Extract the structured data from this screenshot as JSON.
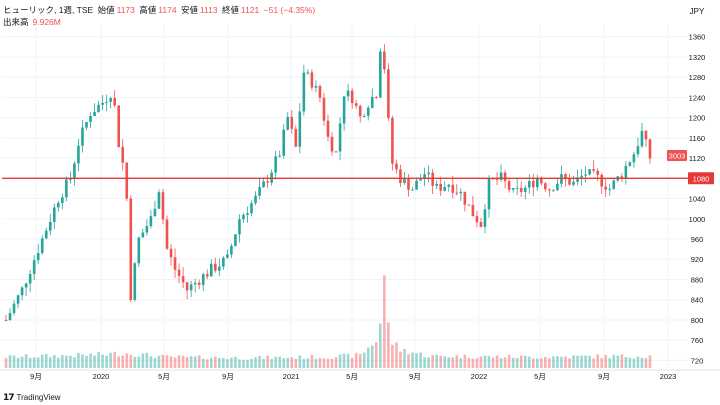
{
  "header": {
    "symbol": "ヒューリック, 1週, TSE",
    "open_label": "始値",
    "open": "1173",
    "high_label": "高値",
    "high": "1174",
    "low_label": "安値",
    "low": "1113",
    "close_label": "終値",
    "close": "1121",
    "change": "−51 (−4.35%)"
  },
  "volume": {
    "label": "出来高",
    "value": "9.926M"
  },
  "brand": "TradingView",
  "colors": {
    "up": "#26a69a",
    "down": "#ef5350",
    "level": "#e53935",
    "grid": "#f0f3fa"
  },
  "chart_data": {
    "type": "candlestick",
    "currency": "JPY",
    "x_ticks": [
      "9月",
      "2020",
      "5月",
      "9月",
      "2021",
      "5月",
      "9月",
      "2022",
      "5月",
      "9月",
      "2023"
    ],
    "y_ticks": [
      720,
      760,
      800,
      840,
      880,
      920,
      960,
      1000,
      1040,
      1080,
      1120,
      1160,
      1200,
      1240,
      1280,
      1320,
      1360
    ],
    "ylim": [
      705,
      1385
    ],
    "horizontal_line": 1080,
    "horizontal_line_label": "1080",
    "last_price_label": "3003",
    "last_close": 1121,
    "price_waypoints": [
      [
        0,
        800
      ],
      [
        2,
        830
      ],
      [
        4,
        860
      ],
      [
        7,
        920
      ],
      [
        10,
        980
      ],
      [
        13,
        1040
      ],
      [
        16,
        1080
      ],
      [
        18,
        1150
      ],
      [
        21,
        1210
      ],
      [
        24,
        1230
      ],
      [
        26,
        1250
      ],
      [
        27,
        1220
      ],
      [
        28,
        1150
      ],
      [
        29,
        1110
      ],
      [
        30,
        1040
      ],
      [
        31,
        850
      ],
      [
        33,
        960
      ],
      [
        36,
        1000
      ],
      [
        38,
        1060
      ],
      [
        40,
        940
      ],
      [
        42,
        900
      ],
      [
        45,
        860
      ],
      [
        48,
        880
      ],
      [
        51,
        900
      ],
      [
        55,
        920
      ],
      [
        58,
        1000
      ],
      [
        62,
        1040
      ],
      [
        65,
        1080
      ],
      [
        68,
        1130
      ],
      [
        70,
        1200
      ],
      [
        72,
        1140
      ],
      [
        74,
        1290
      ],
      [
        76,
        1270
      ],
      [
        78,
        1240
      ],
      [
        80,
        1160
      ],
      [
        82,
        1130
      ],
      [
        84,
        1250
      ],
      [
        86,
        1240
      ],
      [
        88,
        1200
      ],
      [
        90,
        1230
      ],
      [
        92,
        1250
      ],
      [
        93,
        1340
      ],
      [
        94,
        1300
      ],
      [
        95,
        1190
      ],
      [
        96,
        1110
      ],
      [
        98,
        1080
      ],
      [
        101,
        1060
      ],
      [
        104,
        1090
      ],
      [
        107,
        1060
      ],
      [
        110,
        1070
      ],
      [
        113,
        1050
      ],
      [
        116,
        1010
      ],
      [
        118,
        990
      ],
      [
        120,
        1070
      ],
      [
        123,
        1080
      ],
      [
        126,
        1050
      ],
      [
        129,
        1060
      ],
      [
        132,
        1080
      ],
      [
        135,
        1060
      ],
      [
        138,
        1080
      ],
      [
        141,
        1070
      ],
      [
        144,
        1090
      ],
      [
        147,
        1080
      ],
      [
        150,
        1060
      ],
      [
        153,
        1090
      ],
      [
        156,
        1130
      ],
      [
        158,
        1170
      ],
      [
        160,
        1121
      ]
    ],
    "volume_waypoints": [
      [
        0,
        0.12
      ],
      [
        20,
        0.14
      ],
      [
        30,
        0.16
      ],
      [
        40,
        0.12
      ],
      [
        60,
        0.11
      ],
      [
        80,
        0.12
      ],
      [
        88,
        0.14
      ],
      [
        92,
        0.3
      ],
      [
        93,
        0.5
      ],
      [
        94,
        1.0
      ],
      [
        95,
        0.45
      ],
      [
        96,
        0.28
      ],
      [
        98,
        0.2
      ],
      [
        105,
        0.13
      ],
      [
        130,
        0.12
      ],
      [
        160,
        0.13
      ]
    ]
  }
}
